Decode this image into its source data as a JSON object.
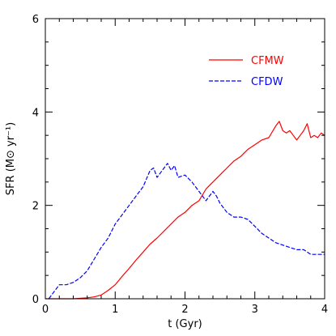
{
  "chart_data": {
    "type": "line",
    "title": "",
    "xlabel": "t  (Gyr)",
    "ylabel": "SFR  (M⊙ yr⁻¹)",
    "xlim": [
      0,
      4
    ],
    "ylim": [
      0,
      6
    ],
    "x_ticks": [
      0,
      1,
      2,
      3,
      4
    ],
    "y_ticks": [
      0,
      2,
      4,
      6
    ],
    "grid": false,
    "legend_position": "top-right",
    "series": [
      {
        "name": "CFMW",
        "color": "#ff0000",
        "style": "solid",
        "x": [
          0.0,
          0.4,
          0.6,
          0.7,
          0.8,
          0.9,
          1.0,
          1.1,
          1.2,
          1.3,
          1.4,
          1.5,
          1.6,
          1.7,
          1.8,
          1.9,
          2.0,
          2.1,
          2.2,
          2.3,
          2.4,
          2.5,
          2.6,
          2.7,
          2.8,
          2.9,
          3.0,
          3.1,
          3.2,
          3.3,
          3.35,
          3.4,
          3.45,
          3.5,
          3.55,
          3.6,
          3.65,
          3.7,
          3.75,
          3.8,
          3.85,
          3.9,
          3.95,
          4.0
        ],
        "y": [
          0.0,
          0.0,
          0.02,
          0.04,
          0.08,
          0.18,
          0.3,
          0.48,
          0.65,
          0.83,
          1.0,
          1.17,
          1.3,
          1.45,
          1.6,
          1.75,
          1.85,
          2.0,
          2.1,
          2.35,
          2.5,
          2.65,
          2.8,
          2.95,
          3.05,
          3.2,
          3.3,
          3.4,
          3.45,
          3.7,
          3.8,
          3.6,
          3.55,
          3.6,
          3.5,
          3.4,
          3.5,
          3.6,
          3.75,
          3.45,
          3.5,
          3.45,
          3.55,
          3.5
        ]
      },
      {
        "name": "CFDW",
        "color": "#0000ff",
        "style": "dashed",
        "x": [
          0.05,
          0.1,
          0.15,
          0.2,
          0.3,
          0.4,
          0.5,
          0.6,
          0.7,
          0.8,
          0.9,
          1.0,
          1.1,
          1.2,
          1.3,
          1.4,
          1.5,
          1.55,
          1.6,
          1.65,
          1.7,
          1.75,
          1.8,
          1.85,
          1.9,
          2.0,
          2.1,
          2.2,
          2.3,
          2.4,
          2.45,
          2.5,
          2.6,
          2.7,
          2.8,
          2.9,
          3.0,
          3.1,
          3.2,
          3.3,
          3.4,
          3.5,
          3.6,
          3.7,
          3.8,
          3.9,
          4.0
        ],
        "y": [
          0.0,
          0.1,
          0.2,
          0.3,
          0.3,
          0.35,
          0.45,
          0.6,
          0.85,
          1.1,
          1.3,
          1.6,
          1.8,
          2.0,
          2.2,
          2.4,
          2.75,
          2.8,
          2.6,
          2.7,
          2.8,
          2.9,
          2.75,
          2.85,
          2.6,
          2.65,
          2.5,
          2.3,
          2.1,
          2.3,
          2.2,
          2.05,
          1.85,
          1.75,
          1.75,
          1.7,
          1.55,
          1.4,
          1.3,
          1.2,
          1.15,
          1.1,
          1.05,
          1.05,
          0.95,
          0.95,
          0.95
        ]
      }
    ]
  }
}
